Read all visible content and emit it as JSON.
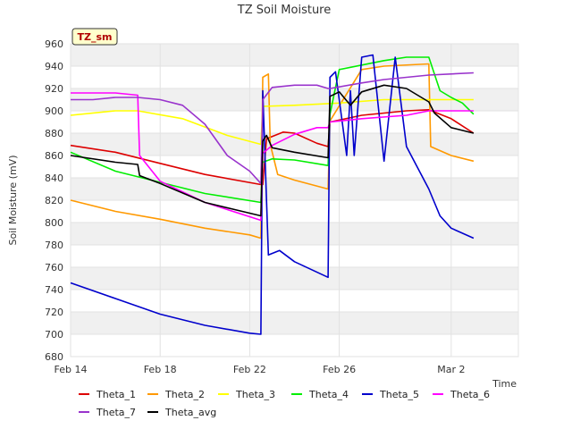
{
  "chart_data": {
    "type": "line",
    "title": "TZ Soil Moisture",
    "badge": "TZ_sm",
    "xlabel": "Time",
    "ylabel": "Soil Moisture (mV)",
    "ylim": [
      680,
      960
    ],
    "yticks": [
      680,
      700,
      720,
      740,
      760,
      780,
      800,
      820,
      840,
      860,
      880,
      900,
      920,
      940,
      960
    ],
    "xlim": [
      "2024-02-14",
      "2024-03-05"
    ],
    "xticks": [
      {
        "date": "2024-02-14",
        "label": "Feb 14"
      },
      {
        "date": "2024-02-18",
        "label": "Feb 18"
      },
      {
        "date": "2024-02-22",
        "label": "Feb 22"
      },
      {
        "date": "2024-02-26",
        "label": "Feb 26"
      },
      {
        "date": "2024-03-02",
        "label": "Mar 2"
      }
    ],
    "grid": true,
    "legend_position": "bottom",
    "series": [
      {
        "name": "Theta_1",
        "color": "#dd0000",
        "x": [
          "2024-02-14",
          "2024-02-16",
          "2024-02-18",
          "2024-02-20",
          "2024-02-22T12:00",
          "2024-02-22T14:00",
          "2024-02-22T18:00",
          "2024-02-23T12:00",
          "2024-02-24",
          "2024-02-25",
          "2024-02-25T12:00",
          "2024-02-25T14:00",
          "2024-02-27",
          "2024-02-29",
          "2024-03-01",
          "2024-03-02",
          "2024-03-03"
        ],
        "y": [
          869,
          863,
          853,
          843,
          834,
          834,
          875,
          881,
          880,
          871,
          868,
          890,
          896,
          900,
          901,
          893,
          880
        ]
      },
      {
        "name": "Theta_2",
        "color": "#ff9900",
        "x": [
          "2024-02-14",
          "2024-02-16",
          "2024-02-18",
          "2024-02-20",
          "2024-02-22",
          "2024-02-22T12:00",
          "2024-02-22T14:00",
          "2024-02-22T20:00",
          "2024-02-22T22:00",
          "2024-02-23T06:00",
          "2024-02-24",
          "2024-02-25T12:00",
          "2024-02-25T14:00",
          "2024-02-27",
          "2024-02-28",
          "2024-03-01",
          "2024-03-01T02:00",
          "2024-03-02",
          "2024-03-03"
        ],
        "y": [
          820,
          810,
          803,
          795,
          789,
          786,
          930,
          933,
          870,
          843,
          838,
          830,
          891,
          937,
          940,
          942,
          868,
          860,
          855
        ]
      },
      {
        "name": "Theta_3",
        "color": "#ffff00",
        "x": [
          "2024-02-14",
          "2024-02-16",
          "2024-02-17",
          "2024-02-19",
          "2024-02-21",
          "2024-02-22T12:00",
          "2024-02-22T14:00",
          "2024-02-24",
          "2024-02-26",
          "2024-02-28",
          "2024-03-01",
          "2024-03-03"
        ],
        "y": [
          896,
          900,
          900,
          893,
          878,
          870,
          904,
          905,
          907,
          910,
          910,
          910
        ]
      },
      {
        "name": "Theta_4",
        "color": "#00ee00",
        "x": [
          "2024-02-14",
          "2024-02-16",
          "2024-02-18",
          "2024-02-20",
          "2024-02-22T12:00",
          "2024-02-22T14:00",
          "2024-02-23",
          "2024-02-24",
          "2024-02-25T12:00",
          "2024-02-25T14:00",
          "2024-02-26",
          "2024-02-28",
          "2024-02-29",
          "2024-03-01",
          "2024-03-01T12:00",
          "2024-03-02",
          "2024-03-02T12:00",
          "2024-03-03"
        ],
        "y": [
          863,
          846,
          836,
          826,
          818,
          854,
          857,
          856,
          851,
          897,
          937,
          945,
          948,
          948,
          918,
          912,
          907,
          897
        ]
      },
      {
        "name": "Theta_5",
        "color": "#0000cc",
        "x": [
          "2024-02-14",
          "2024-02-16",
          "2024-02-18",
          "2024-02-20",
          "2024-02-22",
          "2024-02-22T12:00",
          "2024-02-22T14:00",
          "2024-02-22T20:00",
          "2024-02-23T08:00",
          "2024-02-24",
          "2024-02-25T12:00",
          "2024-02-25T14:00",
          "2024-02-25T20:00",
          "2024-02-26T08:00",
          "2024-02-26T12:00",
          "2024-02-26T16:00",
          "2024-02-27",
          "2024-02-27T12:00",
          "2024-02-28",
          "2024-02-28T12:00",
          "2024-02-29",
          "2024-03-01",
          "2024-03-01T12:00",
          "2024-03-02",
          "2024-03-03"
        ],
        "y": [
          746,
          732,
          718,
          708,
          701,
          700,
          918,
          771,
          775,
          765,
          751,
          930,
          935,
          860,
          918,
          860,
          948,
          950,
          855,
          948,
          868,
          830,
          806,
          795,
          786
        ]
      },
      {
        "name": "Theta_6",
        "color": "#ff00ff",
        "x": [
          "2024-02-14",
          "2024-02-16",
          "2024-02-17",
          "2024-02-17T02:00",
          "2024-02-18",
          "2024-02-20",
          "2024-02-22T12:00",
          "2024-02-22T14:00",
          "2024-02-23",
          "2024-02-24",
          "2024-02-25",
          "2024-02-25T12:00",
          "2024-02-25T14:00",
          "2024-02-27",
          "2024-02-29",
          "2024-03-01",
          "2024-03-03"
        ],
        "y": [
          916,
          916,
          914,
          860,
          837,
          818,
          802,
          862,
          869,
          879,
          885,
          885,
          890,
          893,
          896,
          900,
          900
        ]
      },
      {
        "name": "Theta_7",
        "color": "#9933cc",
        "x": [
          "2024-02-14",
          "2024-02-15",
          "2024-02-16",
          "2024-02-17",
          "2024-02-18",
          "2024-02-19",
          "2024-02-20",
          "2024-02-21",
          "2024-02-22",
          "2024-02-22T12:00",
          "2024-02-22T14:00",
          "2024-02-23",
          "2024-02-24",
          "2024-02-25",
          "2024-02-25T12:00",
          "2024-02-25T14:00",
          "2024-02-27",
          "2024-02-28",
          "2024-03-01",
          "2024-03-03"
        ],
        "y": [
          910,
          910,
          912,
          912,
          910,
          905,
          888,
          860,
          846,
          835,
          910,
          921,
          923,
          923,
          920,
          920,
          925,
          928,
          932,
          934
        ]
      },
      {
        "name": "Theta_avg",
        "color": "#000000",
        "x": [
          "2024-02-14",
          "2024-02-16",
          "2024-02-17",
          "2024-02-17T02:00",
          "2024-02-18",
          "2024-02-20",
          "2024-02-22T12:00",
          "2024-02-22T14:00",
          "2024-02-22T18:00",
          "2024-02-23",
          "2024-02-24",
          "2024-02-25T12:00",
          "2024-02-25T14:00",
          "2024-02-26",
          "2024-02-26T12:00",
          "2024-02-27",
          "2024-02-28",
          "2024-02-29",
          "2024-03-01",
          "2024-03-01T06:00",
          "2024-03-02",
          "2024-03-03"
        ],
        "y": [
          860,
          854,
          852,
          842,
          835,
          818,
          806,
          873,
          878,
          867,
          863,
          858,
          913,
          917,
          905,
          917,
          923,
          920,
          908,
          898,
          885,
          880
        ]
      }
    ]
  }
}
